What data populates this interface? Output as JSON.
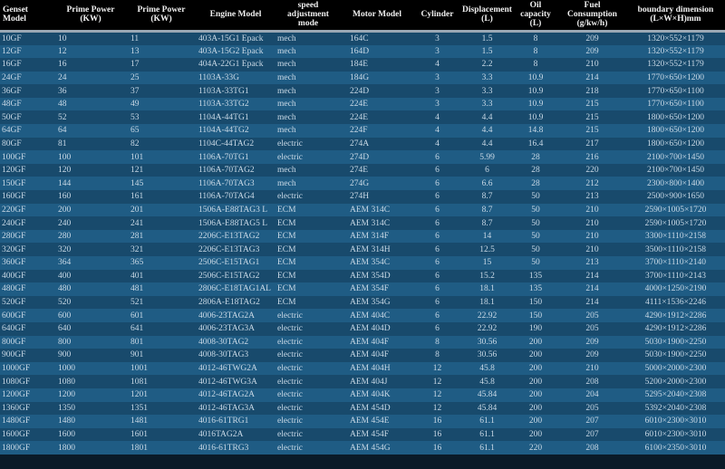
{
  "headers": [
    "Genset Model",
    "Prime Power (KW)",
    "Prime Power (KW)",
    "Engine Model",
    "speed adjustment mode",
    "Motor Model",
    "Cylinder",
    "Displacement (L)",
    "Oil capacity (L)",
    "Fuel Consumption (g/kw/h)",
    "boundary dimension (L×W×H)mm"
  ],
  "rows": [
    [
      "10GF",
      "10",
      "11",
      "403A-15G1 Epack",
      "mech",
      "164C",
      "3",
      "1.5",
      "8",
      "209",
      "1320×552×1179"
    ],
    [
      "12GF",
      "12",
      "13",
      "403A-15G2 Epack",
      "mech",
      "164D",
      "3",
      "1.5",
      "8",
      "209",
      "1320×552×1179"
    ],
    [
      "16GF",
      "16",
      "17",
      "404A-22G1 Epack",
      "mech",
      "184E",
      "4",
      "2.2",
      "8",
      "210",
      "1320×552×1179"
    ],
    [
      "24GF",
      "24",
      "25",
      "1103A-33G",
      "mech",
      "184G",
      "3",
      "3.3",
      "10.9",
      "214",
      "1770×650×1200"
    ],
    [
      "36GF",
      "36",
      "37",
      "1103A-33TG1",
      "mech",
      "224D",
      "3",
      "3.3",
      "10.9",
      "218",
      "1770×650×1100"
    ],
    [
      "48GF",
      "48",
      "49",
      "1103A-33TG2",
      "mech",
      "224E",
      "3",
      "3.3",
      "10.9",
      "215",
      "1770×650×1100"
    ],
    [
      "50GF",
      "52",
      "53",
      "1104A-44TG1",
      "mech",
      "224E",
      "4",
      "4.4",
      "10.9",
      "215",
      "1800×650×1200"
    ],
    [
      "64GF",
      "64",
      "65",
      "1104A-44TG2",
      "mech",
      "224F",
      "4",
      "4.4",
      "14.8",
      "215",
      "1800×650×1200"
    ],
    [
      "80GF",
      "81",
      "82",
      "1104C-44TAG2",
      "electric",
      "274A",
      "4",
      "4.4",
      "16.4",
      "217",
      "1800×650×1200"
    ],
    [
      "100GF",
      "100",
      "101",
      "1106A-70TG1",
      "electric",
      "274D",
      "6",
      "5.99",
      "28",
      "216",
      "2100×700×1450"
    ],
    [
      "120GF",
      "120",
      "121",
      "1106A-70TAG2",
      "mech",
      "274E",
      "6",
      "6",
      "28",
      "220",
      "2100×700×1450"
    ],
    [
      "150GF",
      "144",
      "145",
      "1106A-70TAG3",
      "mech",
      "274G",
      "6",
      "6.6",
      "28",
      "212",
      "2300×800×1400"
    ],
    [
      "160GF",
      "160",
      "161",
      "1106A-70TAG4",
      "electric",
      "274H",
      "6",
      "8.7",
      "50",
      "213",
      "2500×900×1650"
    ],
    [
      "220GF",
      "200",
      "201",
      "1506A-E88TAG3 L",
      "ECM",
      "AEM 314C",
      "6",
      "8.7",
      "50",
      "210",
      "2590×1005×1720"
    ],
    [
      "240GF",
      "240",
      "241",
      "1506A-E88TAG5 L",
      "ECM",
      "AEM 314C",
      "6",
      "8.7",
      "50",
      "210",
      "2590×1005×1720"
    ],
    [
      "280GF",
      "280",
      "281",
      "2206C-E13TAG2",
      "ECM",
      "AEM 314F",
      "6",
      "14",
      "50",
      "210",
      "3300×1110×2158"
    ],
    [
      "320GF",
      "320",
      "321",
      "2206C-E13TAG3",
      "ECM",
      "AEM 314H",
      "6",
      "12.5",
      "50",
      "210",
      "3500×1110×2158"
    ],
    [
      "360GF",
      "364",
      "365",
      "2506C-E15TAG1",
      "ECM",
      "AEM 354C",
      "6",
      "15",
      "50",
      "213",
      "3700×1110×2140"
    ],
    [
      "400GF",
      "400",
      "401",
      "2506C-E15TAG2",
      "ECM",
      "AEM 354D",
      "6",
      "15.2",
      "135",
      "214",
      "3700×1110×2143"
    ],
    [
      "480GF",
      "480",
      "481",
      "2806C-E18TAG1AL",
      "ECM",
      "AEM 354F",
      "6",
      "18.1",
      "135",
      "214",
      "4000×1250×2190"
    ],
    [
      "520GF",
      "520",
      "521",
      "2806A-E18TAG2",
      "ECM",
      "AEM 354G",
      "6",
      "18.1",
      "150",
      "214",
      "4111×1536×2246"
    ],
    [
      "600GF",
      "600",
      "601",
      "4006-23TAG2A",
      "electric",
      "AEM 404C",
      "6",
      "22.92",
      "150",
      "205",
      "4290×1912×2286"
    ],
    [
      "640GF",
      "640",
      "641",
      "4006-23TAG3A",
      "electric",
      "AEM 404D",
      "6",
      "22.92",
      "190",
      "205",
      "4290×1912×2286"
    ],
    [
      "800GF",
      "800",
      "801",
      "4008-30TAG2",
      "electric",
      "AEM 404F",
      "8",
      "30.56",
      "200",
      "209",
      "5030×1900×2250"
    ],
    [
      "900GF",
      "900",
      "901",
      "4008-30TAG3",
      "electric",
      "AEM 404F",
      "8",
      "30.56",
      "200",
      "209",
      "5030×1900×2250"
    ],
    [
      "1000GF",
      "1000",
      "1001",
      "4012-46TWG2A",
      "electric",
      "AEM 404H",
      "12",
      "45.8",
      "200",
      "210",
      "5000×2000×2300"
    ],
    [
      "1080GF",
      "1080",
      "1081",
      "4012-46TWG3A",
      "electric",
      "AEM 404J",
      "12",
      "45.8",
      "200",
      "208",
      "5200×2000×2300"
    ],
    [
      "1200GF",
      "1200",
      "1201",
      "4012-46TAG2A",
      "electric",
      "AEM 404K",
      "12",
      "45.84",
      "200",
      "204",
      "5295×2040×2308"
    ],
    [
      "1360GF",
      "1350",
      "1351",
      "4012-46TAG3A",
      "electric",
      "AEM 454D",
      "12",
      "45.84",
      "200",
      "205",
      "5392×2040×2308"
    ],
    [
      "1480GF",
      "1480",
      "1481",
      "4016-61TRG1",
      "electric",
      "AEM 454E",
      "16",
      "61.1",
      "200",
      "207",
      "6010×2300×3010"
    ],
    [
      "1600GF",
      "1600",
      "1601",
      "4016TAG2A",
      "electric",
      "AEM 454F",
      "16",
      "61.1",
      "200",
      "207",
      "6010×2300×3010"
    ],
    [
      "1800GF",
      "1800",
      "1801",
      "4016-61TRG3",
      "electric",
      "AEM 454G",
      "16",
      "61.1",
      "220",
      "208",
      "6100×2350×3010"
    ]
  ]
}
